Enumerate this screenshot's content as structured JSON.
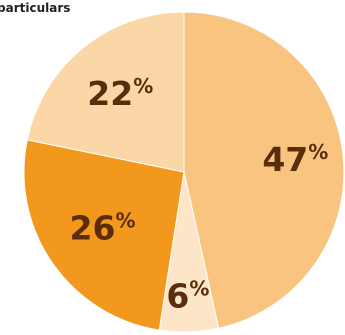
{
  "chart_data": {
    "type": "pie",
    "title": "particulars",
    "unit": "%",
    "slices": [
      {
        "value": 47,
        "color": "#f9c47f"
      },
      {
        "value": 6,
        "color": "#fde6c8"
      },
      {
        "value": 26,
        "color": "#f2981c"
      },
      {
        "value": 22,
        "color": "#fbd6a6"
      }
    ]
  }
}
